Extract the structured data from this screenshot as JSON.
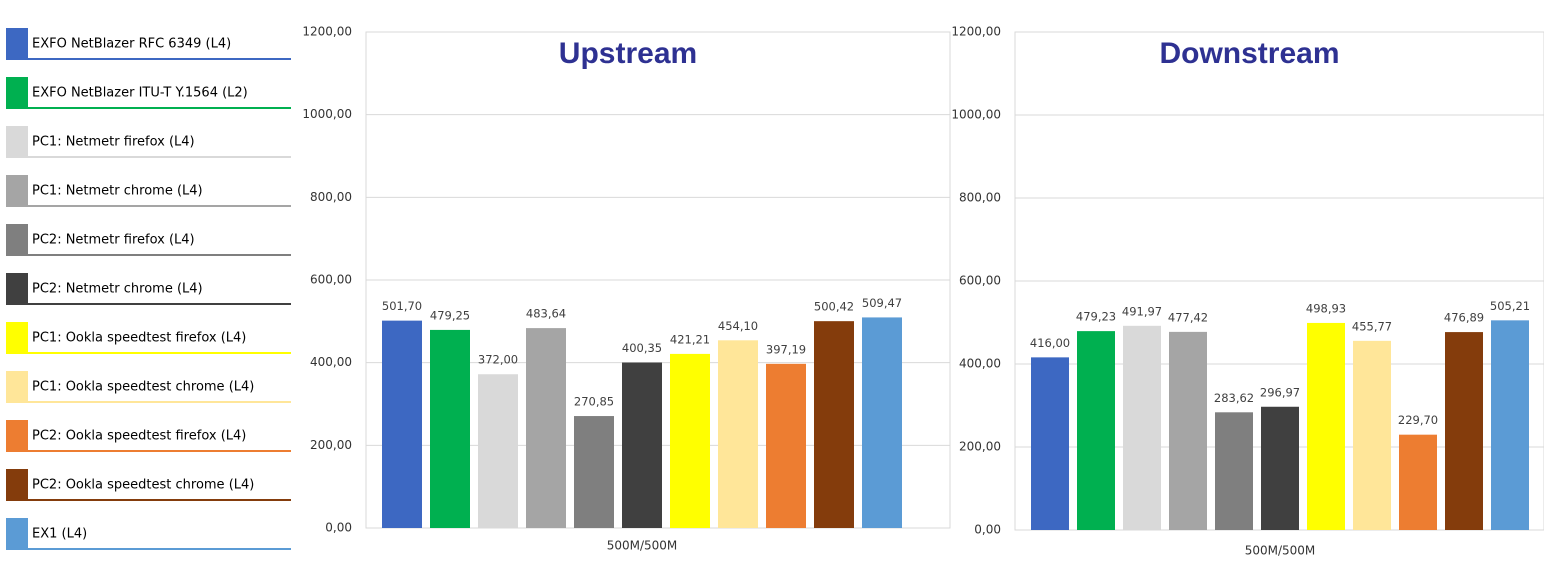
{
  "legend": [
    {
      "name": "EXFO NetBlazer RFC 6349 (L4)",
      "color": "#3d68c2"
    },
    {
      "name": "EXFO NetBlazer ITU-T Y.1564 (L2)",
      "color": "#00b050"
    },
    {
      "name": "PC1: Netmetr firefox (L4)",
      "color": "#d9d9d9"
    },
    {
      "name": "PC1: Netmetr chrome (L4)",
      "color": "#a5a5a5"
    },
    {
      "name": "PC2: Netmetr firefox (L4)",
      "color": "#7f7f7f"
    },
    {
      "name": "PC2: Netmetr chrome (L4)",
      "color": "#404040"
    },
    {
      "name": "PC1: Ookla speedtest firefox (L4)",
      "color": "#ffff00"
    },
    {
      "name": "PC1: Ookla speedtest chrome (L4)",
      "color": "#ffe699"
    },
    {
      "name": "PC2: Ookla speedtest firefox (L4)",
      "color": "#ed7d31"
    },
    {
      "name": "PC2: Ookla speedtest chrome (L4)",
      "color": "#843c0c"
    },
    {
      "name": "EX1 (L4)",
      "color": "#5b9bd5"
    }
  ],
  "chart_data": [
    {
      "type": "bar",
      "title": "Upstream",
      "xlabel": "500M/500M",
      "values": [
        501.7,
        479.25,
        372.0,
        483.64,
        270.85,
        400.35,
        421.21,
        454.1,
        397.19,
        500.42,
        509.47
      ],
      "value_labels": [
        "501,70",
        "479,25",
        "372,00",
        "483,64",
        "270,85",
        "400,35",
        "421,21",
        "454,10",
        "397,19",
        "500,42",
        "509,47"
      ],
      "ylim": [
        0,
        1200
      ],
      "yticks": [
        {
          "value": 0,
          "label": "0,00"
        },
        {
          "value": 200,
          "label": "200,00"
        },
        {
          "value": 400,
          "label": "400,00"
        },
        {
          "value": 600,
          "label": "600,00"
        },
        {
          "value": 800,
          "label": "800,00"
        },
        {
          "value": 1000,
          "label": "1000,00"
        },
        {
          "value": 1200,
          "label": "1200,00"
        }
      ],
      "grid": true
    },
    {
      "type": "bar",
      "title": "Downstream",
      "xlabel": "500M/500M",
      "values": [
        416.0,
        479.23,
        491.97,
        477.42,
        283.62,
        296.97,
        498.93,
        455.77,
        229.7,
        476.89,
        505.21
      ],
      "value_labels": [
        "416,00",
        "479,23",
        "491,97",
        "477,42",
        "283,62",
        "296,97",
        "498,93",
        "455,77",
        "229,70",
        "476,89",
        "505,21"
      ],
      "ylim": [
        0,
        1200
      ],
      "yticks": [
        {
          "value": 0,
          "label": "0,00"
        },
        {
          "value": 200,
          "label": "200,00"
        },
        {
          "value": 400,
          "label": "400,00"
        },
        {
          "value": 600,
          "label": "600,00"
        },
        {
          "value": 800,
          "label": "800,00"
        },
        {
          "value": 1000,
          "label": "1000,00"
        },
        {
          "value": 1200,
          "label": "1200,00"
        }
      ],
      "grid": true
    }
  ]
}
